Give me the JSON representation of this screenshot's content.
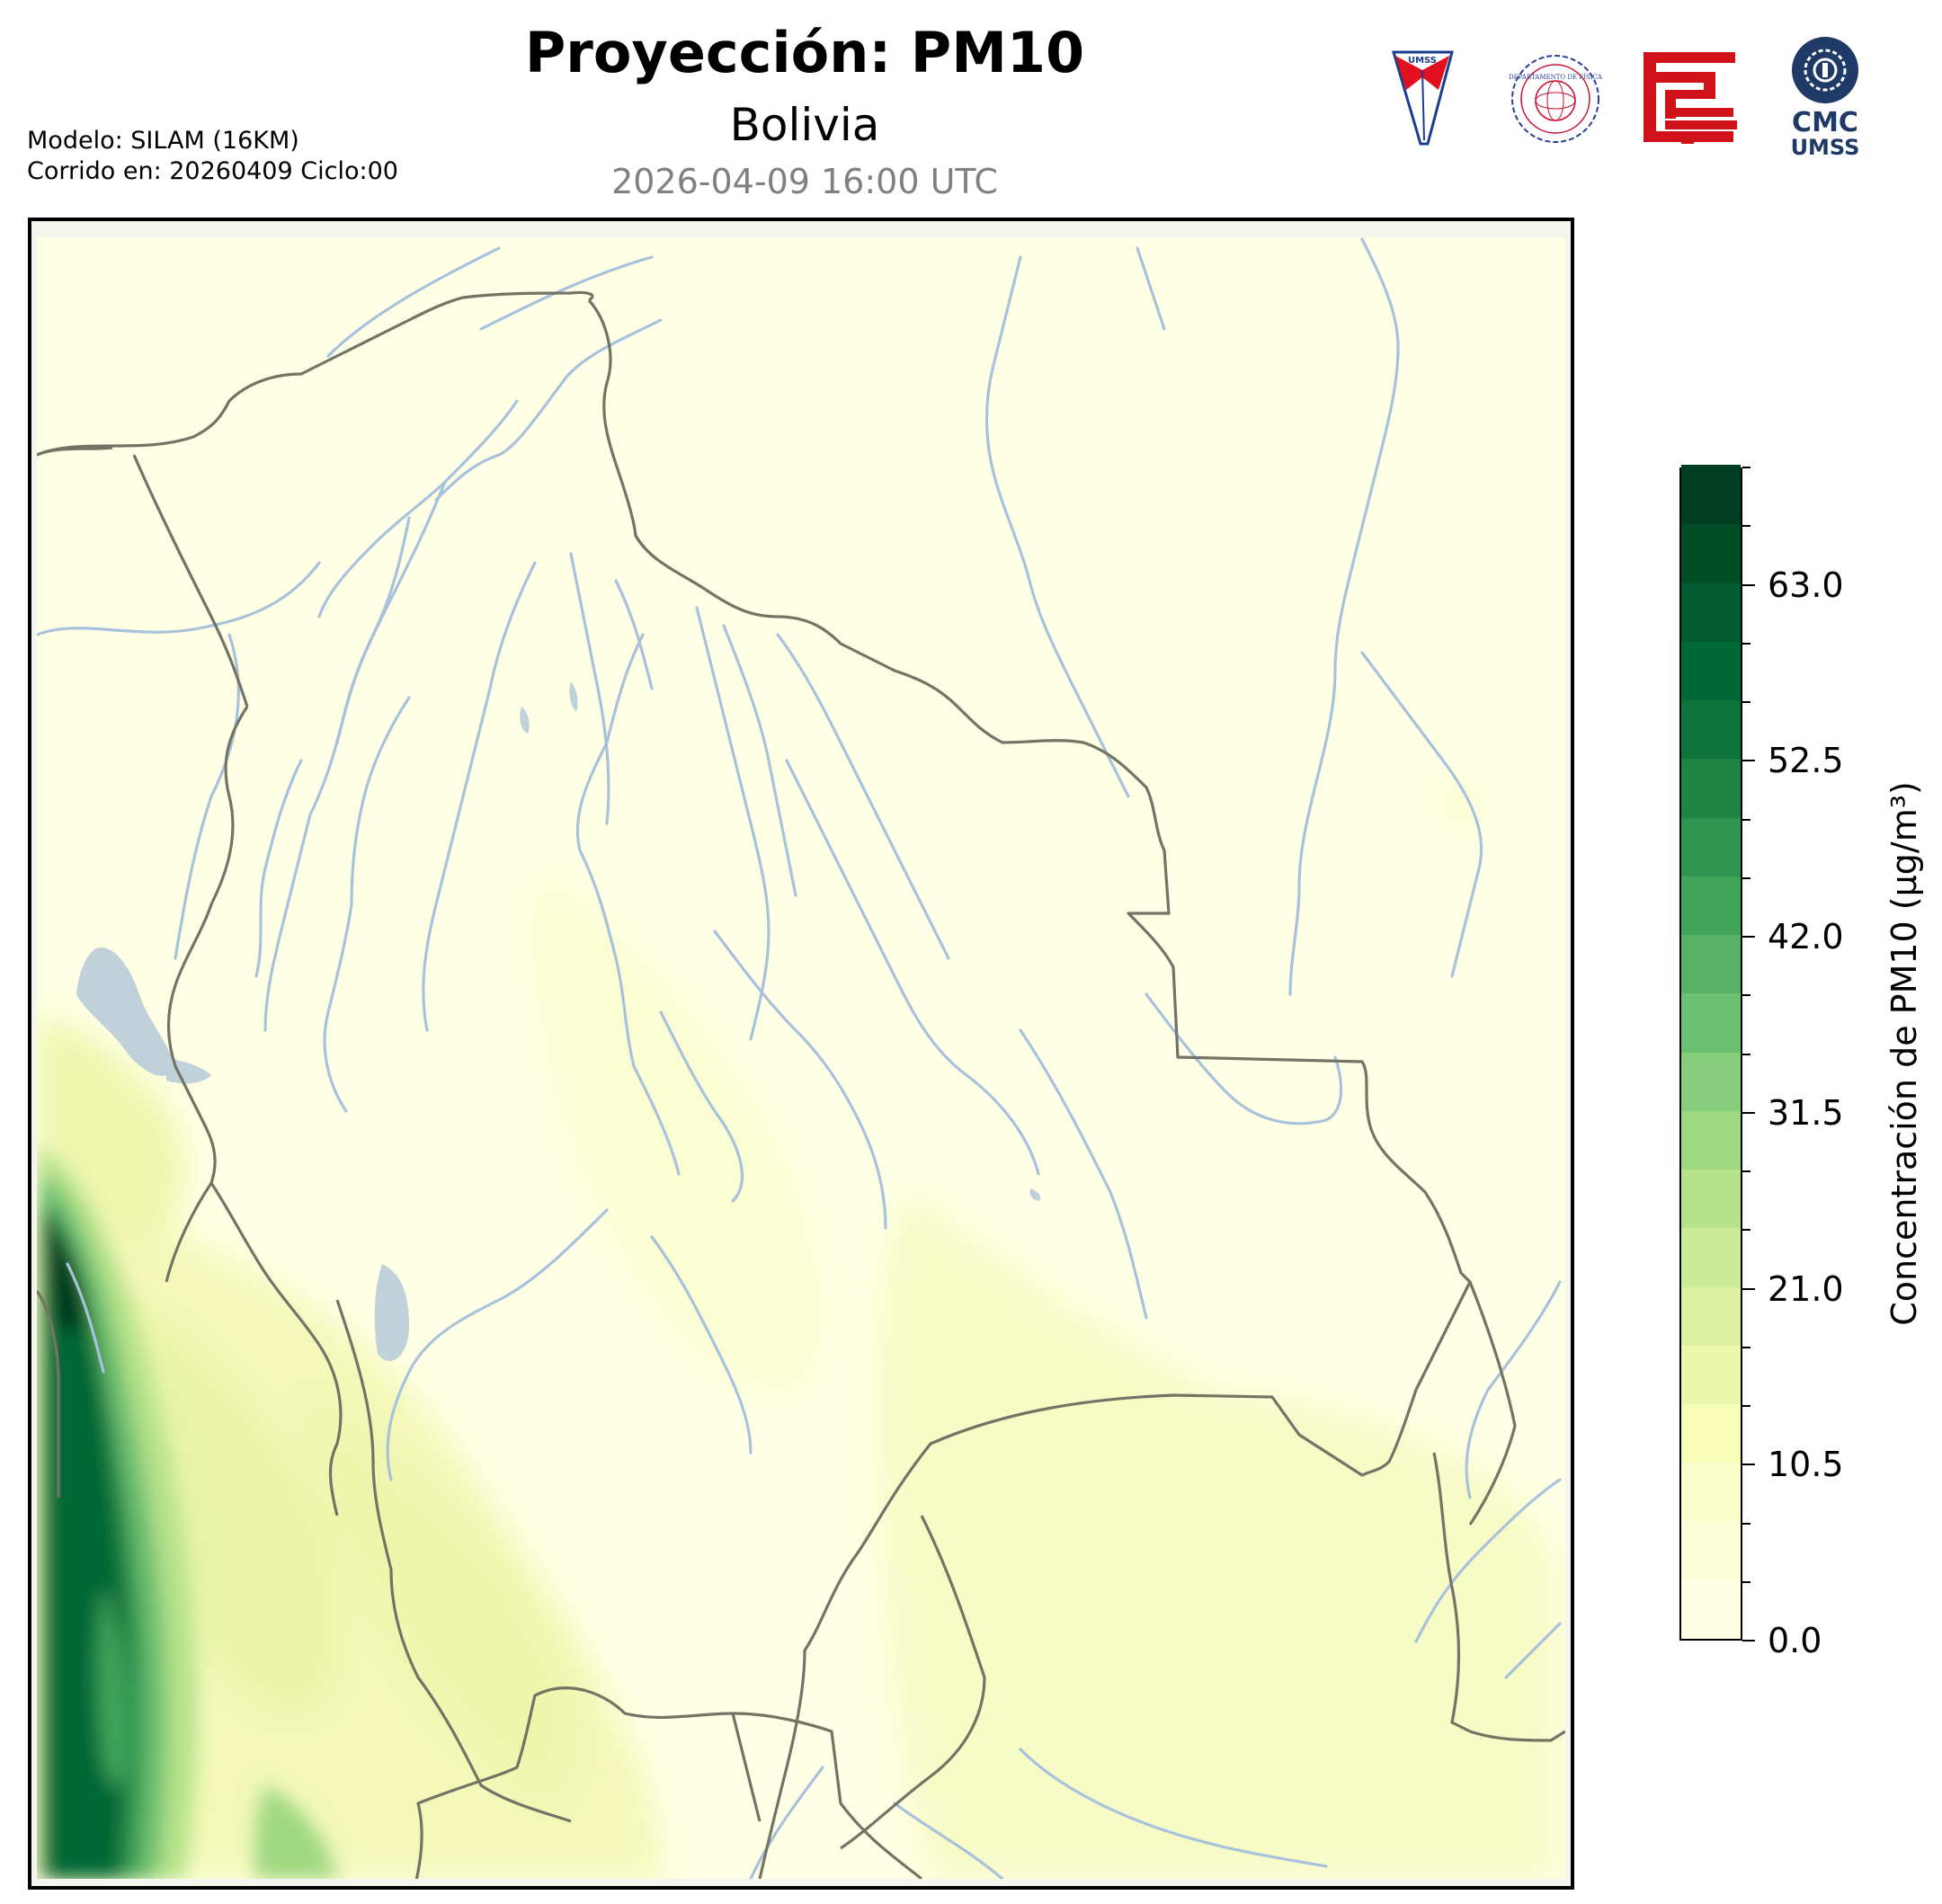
{
  "header": {
    "title": "Proyección: PM10",
    "subtitle": "Bolivia",
    "timestamp": "2026-04-09 16:00 UTC",
    "model": "Modelo: SILAM (16KM)",
    "run": "Corrido en: 20260409 Ciclo:00"
  },
  "logos": [
    {
      "name": "umss-shield-logo",
      "text": "UMSS",
      "colors": [
        "#1a3d8f",
        "#e0101e"
      ]
    },
    {
      "name": "departamento-fisica-seal-logo",
      "text": "DEPARTAMENTO DE FÍSICA",
      "colors": [
        "#2b3f9a",
        "#c8102e"
      ]
    },
    {
      "name": "red-glyph-logo",
      "colors": [
        "#d0121b"
      ]
    },
    {
      "name": "cmc-umss-logo",
      "text": [
        "CMC",
        "UMSS"
      ],
      "colors": [
        "#1f3a66"
      ]
    }
  ],
  "colorbar": {
    "label": "Concentración de PM10 (μg/m³)",
    "min": 0,
    "max": 70,
    "ticks": [
      {
        "value": 0,
        "label": "0.0"
      },
      {
        "value": 10.5,
        "label": "10.5"
      },
      {
        "value": 21,
        "label": "21.0"
      },
      {
        "value": 31.5,
        "label": "31.5"
      },
      {
        "value": 42,
        "label": "42.0"
      },
      {
        "value": 52.5,
        "label": "52.5"
      },
      {
        "value": 63,
        "label": "63.0"
      }
    ],
    "minor_step": 3.5,
    "colors": [
      "#ffffe5",
      "#fcfed9",
      "#f9fdca",
      "#f7fcb9",
      "#eaf7ad",
      "#dcf1a1",
      "#cceb96",
      "#b6e28b",
      "#9fd882",
      "#86cd7c",
      "#6dbf71",
      "#55b266",
      "#41a55c",
      "#2f9450",
      "#1f8344",
      "#0f743c",
      "#006834",
      "#005c30",
      "#004b28",
      "#003d21"
    ]
  },
  "map": {
    "region": "Bolivia",
    "colors": {
      "background": "#ffffe5",
      "border": "#747466",
      "rivers": "#a8c2dc",
      "lakes": "#b5c9d8",
      "frame_edge": "#f4f6ee"
    }
  }
}
